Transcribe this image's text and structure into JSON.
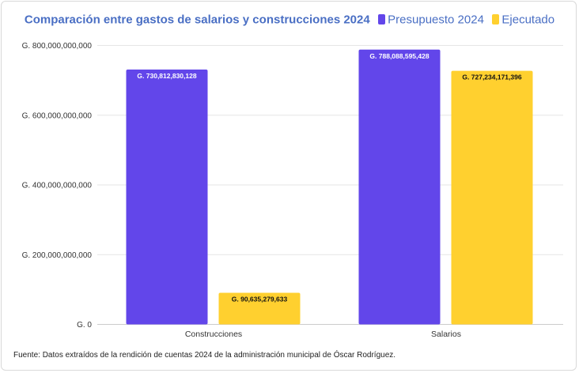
{
  "chart_data": {
    "type": "bar",
    "title": "Comparación entre gastos de salarios y construcciones 2024",
    "categories": [
      "Construcciones",
      "Salarios"
    ],
    "series": [
      {
        "name": "Presupuesto 2024",
        "color": "#6246ea",
        "values": [
          730812830128,
          788088595428
        ],
        "labels": [
          "G. 730,812,830,128",
          "G. 788,088,595,428"
        ]
      },
      {
        "name": "Ejecutado",
        "color": "#ffd02f",
        "values": [
          90635279633,
          727234171396
        ],
        "labels": [
          "G. 90,635,279,633",
          "G. 727,234,171,396"
        ]
      }
    ],
    "y_ticks": [
      {
        "value": 0,
        "label": "G. 0"
      },
      {
        "value": 200000000000,
        "label": "G. 200,000,000,000"
      },
      {
        "value": 400000000000,
        "label": "G. 400,000,000,000"
      },
      {
        "value": 600000000000,
        "label": "G. 600,000,000,000"
      },
      {
        "value": 800000000000,
        "label": "G. 800,000,000,000"
      }
    ],
    "ylim": [
      0,
      800000000000
    ],
    "xlabel": "",
    "ylabel": "",
    "grid": true,
    "legend_position": "top"
  },
  "source_note": "Fuente: Datos extraídos de la rendición de cuentas 2024 de la administración municipal de Óscar Rodríguez."
}
